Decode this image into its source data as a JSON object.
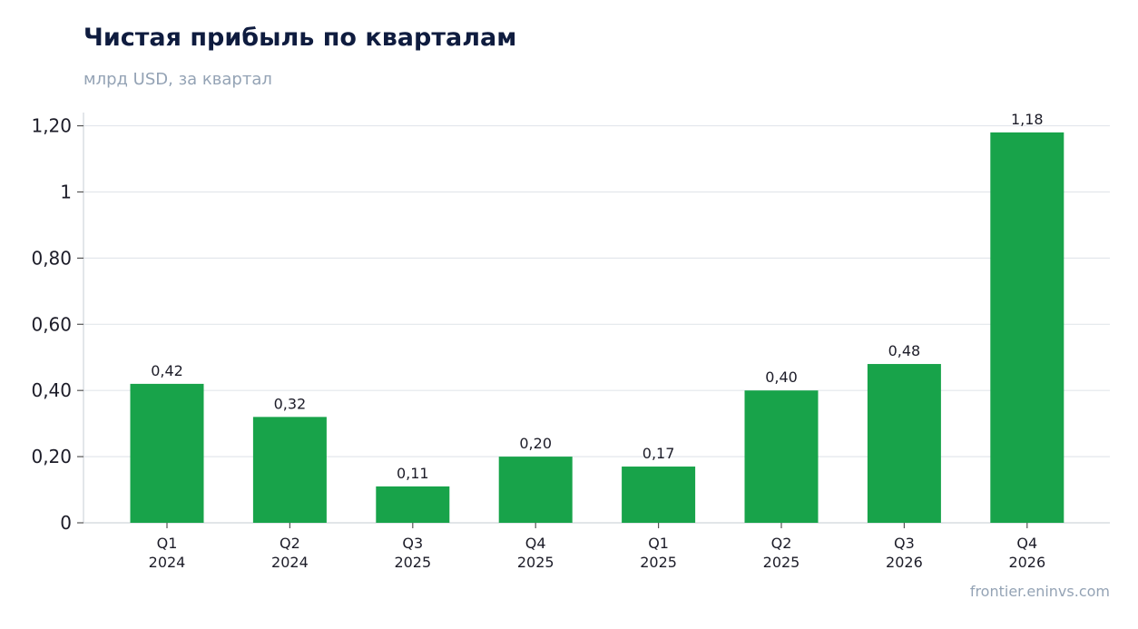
{
  "header": {
    "title": "Чистая прибыль по кварталам",
    "subtitle": "млрд USD, за квартал"
  },
  "footer": {
    "source": "frontier.eninvs.com"
  },
  "colors": {
    "bar": "#18a34a",
    "grid": "#e3e7ec",
    "axis": "#d0d5db",
    "text": "#1c1c28"
  },
  "chart_data": {
    "type": "bar",
    "title": "Чистая прибыль по кварталам",
    "subtitle": "млрд USD, за квартал",
    "categories": [
      [
        "Q1",
        "2024"
      ],
      [
        "Q2",
        "2024"
      ],
      [
        "Q3",
        "2025"
      ],
      [
        "Q4",
        "2025"
      ],
      [
        "Q1",
        "2025"
      ],
      [
        "Q2",
        "2025"
      ],
      [
        "Q3",
        "2026"
      ],
      [
        "Q4",
        "2026"
      ]
    ],
    "values": [
      0.42,
      0.32,
      0.11,
      0.2,
      0.17,
      0.4,
      0.48,
      1.18
    ],
    "data_labels": [
      "0,42",
      "0,32",
      "0,11",
      "0,20",
      "0,17",
      "0,40",
      "0,48",
      "1,18"
    ],
    "yticks": [
      0,
      0.2,
      0.4,
      0.6,
      0.8,
      1,
      1.2
    ],
    "ytick_labels": [
      "0",
      "0,20",
      "0,40",
      "0,60",
      "0,80",
      "1",
      "1,20"
    ],
    "ylim": [
      0,
      1.24
    ],
    "grid": true,
    "legend": "none"
  }
}
